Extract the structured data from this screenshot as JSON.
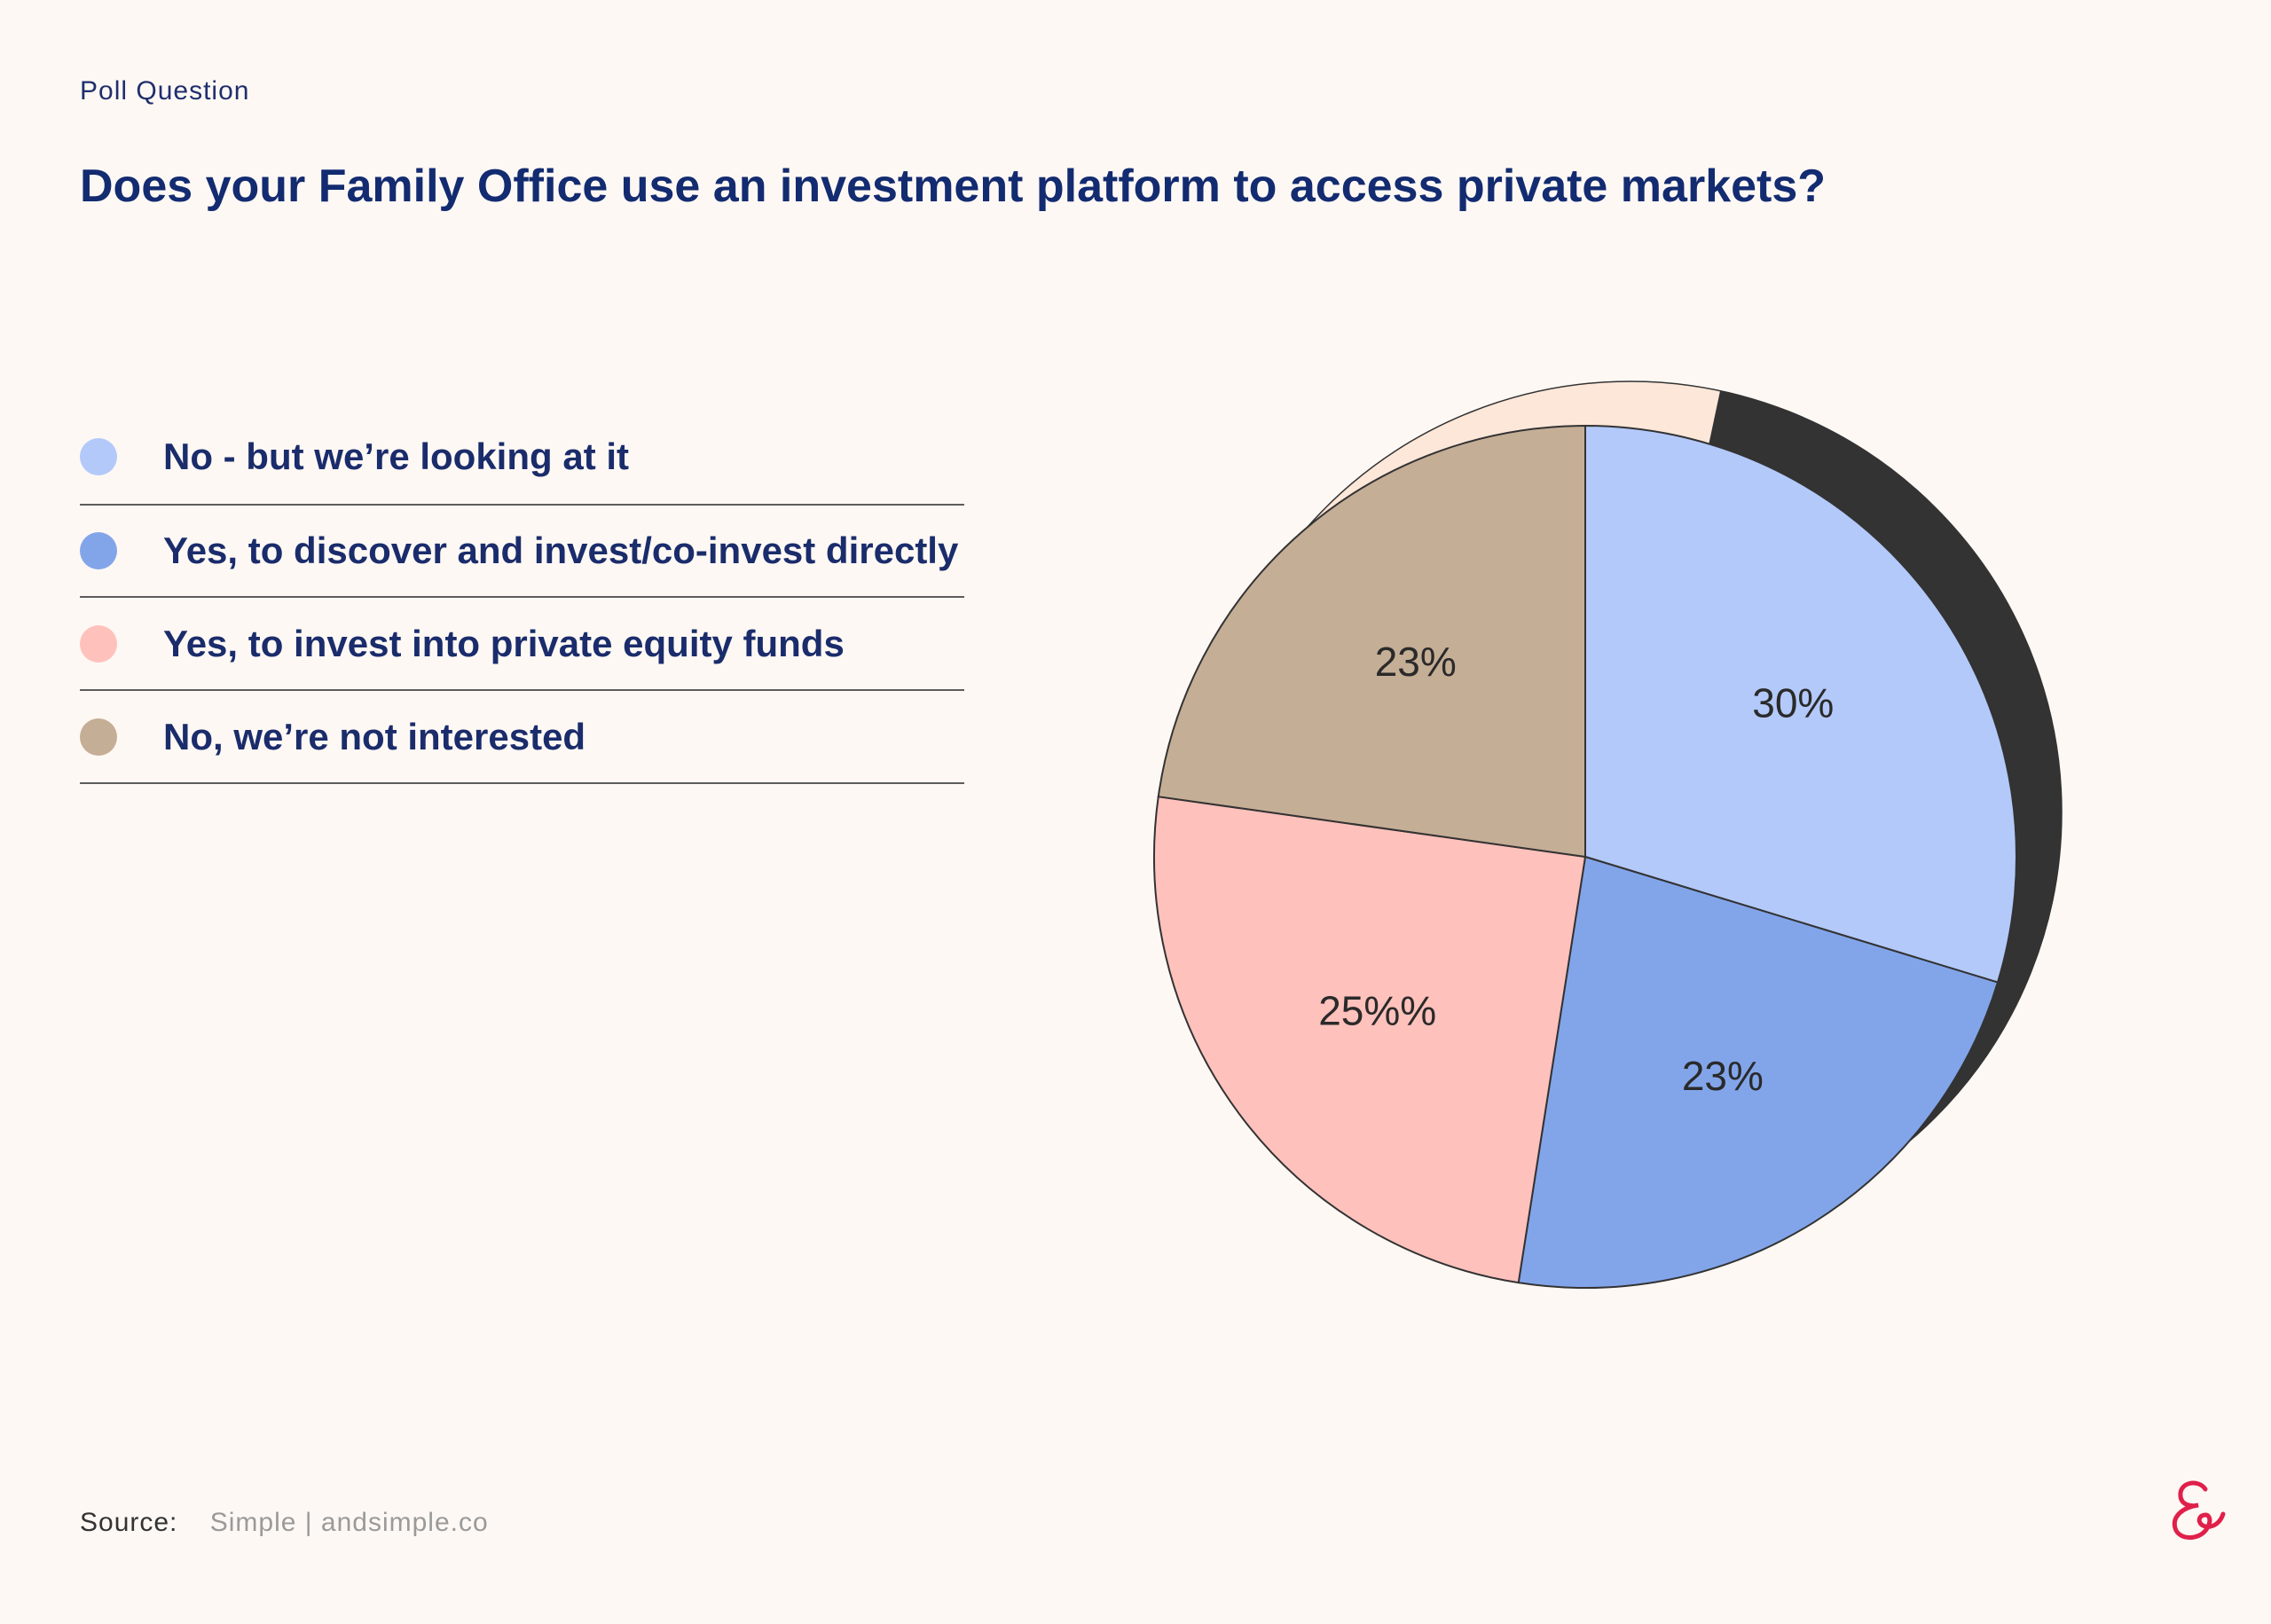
{
  "header": {
    "eyebrow": "Poll Question",
    "title": "Does your Family Office use an investment platform to access private markets?"
  },
  "legend": {
    "items": [
      {
        "label": "No - but we’re looking at it",
        "color": "#B3C9FA"
      },
      {
        "label": "Yes, to discover and invest/co-invest directly",
        "color": "#82A5EA"
      },
      {
        "label": "Yes, to invest into private equity funds",
        "color": "#FFC1BC"
      },
      {
        "label": "No, we’re not interested",
        "color": "#C5AE96"
      }
    ]
  },
  "chart_data": {
    "type": "pie",
    "title": "Does your Family Office use an investment platform to access private markets?",
    "slices": [
      {
        "label": "No - but we’re looking at it",
        "value": 30,
        "display": "30%",
        "color": "#B3C9FA"
      },
      {
        "label": "Yes, to discover and invest/co-invest directly",
        "value": 23,
        "display": "23%",
        "color": "#82A5EA"
      },
      {
        "label": "Yes, to invest into private equity funds",
        "value": 25,
        "display": "25%%",
        "color": "#FFC1BC"
      },
      {
        "label": "No, we’re not interested",
        "value": 23,
        "display": "23%",
        "color": "#C5AE96"
      }
    ],
    "legend_position": "left",
    "shadow_color": "#333333",
    "back_color": "#FDE7D9"
  },
  "footer": {
    "source_label": "Source:",
    "source_value": "Simple | andsimple.co"
  },
  "logo": {
    "icon": "ampersand-logo-icon",
    "color": "#E0204A"
  }
}
